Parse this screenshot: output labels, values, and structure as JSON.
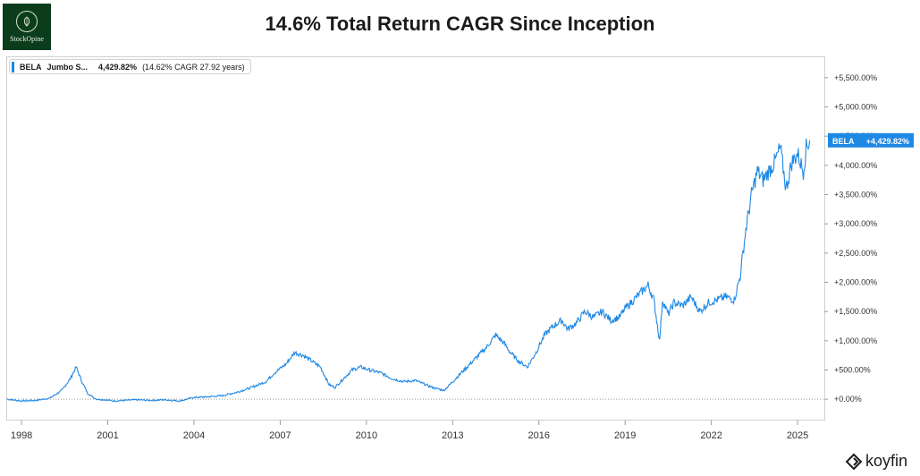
{
  "logo": {
    "text": "StockOpine",
    "icon": "leaf-emblem-icon"
  },
  "header": {
    "title": "14.6% Total Return CAGR Since Inception"
  },
  "legend": {
    "ticker": "BELA",
    "name": "Jumbo S...",
    "value": "4,429.82%",
    "cagr_text": "(14.62% CAGR 27.92 years)"
  },
  "price_tag": {
    "ticker": "BELA",
    "value": "+4,429.82%"
  },
  "brand": {
    "name": "koyfin",
    "icon": "koyfin-logo-icon"
  },
  "colors": {
    "series": "#1e88e5",
    "logo_bg": "#0b3d1c",
    "tag_bg": "#1e88e5"
  },
  "chart_data": {
    "type": "line",
    "title": "14.6% Total Return CAGR Since Inception",
    "xlabel": "",
    "ylabel": "",
    "xlim": [
      1997.5,
      2025.9
    ],
    "ylim": [
      -350,
      5850
    ],
    "x_ticks": [
      1998,
      2001,
      2004,
      2007,
      2010,
      2013,
      2016,
      2019,
      2022,
      2025
    ],
    "x_tick_labels": [
      "1998",
      "2001",
      "2004",
      "2007",
      "2010",
      "2013",
      "2016",
      "2019",
      "2022",
      "2025"
    ],
    "y_ticks": [
      0,
      500,
      1000,
      1500,
      2000,
      2500,
      3000,
      3500,
      4000,
      4500,
      5000,
      5500
    ],
    "y_tick_labels": [
      "+0.00%",
      "+500.00%",
      "+1,000.00%",
      "+1,500.00%",
      "+2,000.00%",
      "+2,500.00%",
      "+3,000.00%",
      "+3,500.00%",
      "+4,000.00%",
      "+4,500.00%",
      "+5,000.00%",
      "+5,500.00%"
    ],
    "baseline": 0,
    "grid": false,
    "series": [
      {
        "name": "BELA",
        "x": [
          1997.5,
          1998.0,
          1998.5,
          1999.0,
          1999.4,
          1999.7,
          1999.9,
          2000.1,
          2000.3,
          2000.6,
          2000.9,
          2001.2,
          2001.6,
          2002.0,
          2002.5,
          2003.0,
          2003.5,
          2004.0,
          2004.5,
          2005.0,
          2005.5,
          2006.0,
          2006.5,
          2006.8,
          2007.2,
          2007.5,
          2007.8,
          2008.1,
          2008.4,
          2008.7,
          2008.9,
          2009.2,
          2009.5,
          2009.8,
          2010.1,
          2010.5,
          2010.9,
          2011.3,
          2011.7,
          2012.0,
          2012.3,
          2012.7,
          2013.0,
          2013.3,
          2013.6,
          2013.9,
          2014.2,
          2014.5,
          2014.8,
          2015.0,
          2015.3,
          2015.6,
          2015.9,
          2016.2,
          2016.5,
          2016.8,
          2017.0,
          2017.3,
          2017.6,
          2017.9,
          2018.2,
          2018.5,
          2018.8,
          2019.0,
          2019.3,
          2019.6,
          2019.8,
          2020.0,
          2020.2,
          2020.3,
          2020.5,
          2020.7,
          2021.0,
          2021.3,
          2021.6,
          2021.9,
          2022.2,
          2022.5,
          2022.8,
          2023.0,
          2023.2,
          2023.4,
          2023.6,
          2023.8,
          2024.0,
          2024.2,
          2024.4,
          2024.6,
          2024.8,
          2025.0,
          2025.2,
          2025.3,
          2025.42
        ],
        "values": [
          0,
          -30,
          -20,
          20,
          150,
          350,
          550,
          300,
          100,
          0,
          -10,
          -30,
          -20,
          -10,
          -20,
          -10,
          -30,
          30,
          40,
          60,
          120,
          200,
          300,
          450,
          600,
          800,
          750,
          650,
          550,
          250,
          200,
          350,
          500,
          550,
          500,
          450,
          350,
          300,
          320,
          260,
          200,
          150,
          300,
          450,
          600,
          750,
          900,
          1100,
          950,
          800,
          650,
          550,
          800,
          1100,
          1250,
          1350,
          1200,
          1300,
          1500,
          1400,
          1500,
          1350,
          1400,
          1550,
          1700,
          1850,
          1950,
          1700,
          1000,
          1700,
          1450,
          1650,
          1600,
          1750,
          1500,
          1650,
          1700,
          1750,
          1700,
          2100,
          2900,
          3500,
          3900,
          3750,
          3900,
          4050,
          4300,
          3600,
          4050,
          4200,
          3900,
          4300,
          4430
        ]
      }
    ]
  }
}
